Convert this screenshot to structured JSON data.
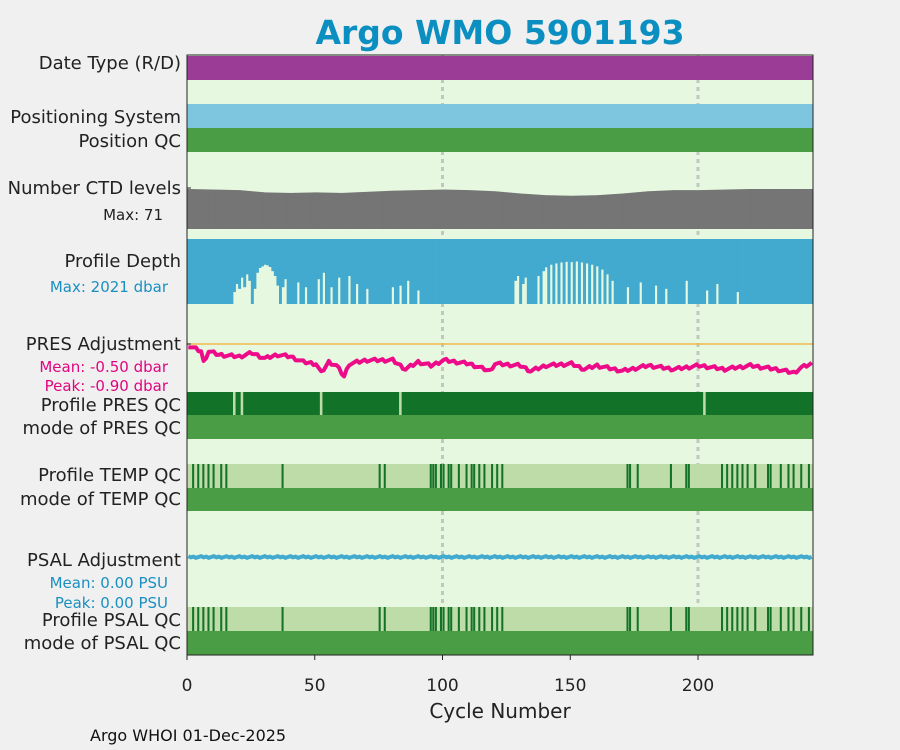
{
  "chart_data": {
    "type": "bar",
    "title": "Argo WMO 5901193",
    "xlabel": "Cycle Number",
    "xlim": [
      0,
      245
    ],
    "xticks": [
      0,
      50,
      100,
      150,
      200
    ],
    "grid_x": [
      100,
      200
    ],
    "footer": "Argo WHOI 01-Dec-2025",
    "n_cycles": 245,
    "colors": {
      "title": "#0b8fc1",
      "background": "#e6f9e0",
      "date_type": "#9b3c97",
      "positioning_system": "#7ec6df",
      "good_qc": "#4a9c45",
      "ctd_levels": "#757575",
      "profile_depth": "#42a9cf",
      "pres_adjust": "#ee0b8a",
      "pres_reference": "#f2b84b",
      "profile_qc_a": "#127228",
      "profile_qc_light": "#bedca8",
      "psal_adjust": "#42a9cf"
    },
    "rows": {
      "date_type": {
        "label": "Date Type (R/D)",
        "value": "D"
      },
      "positioning_system": {
        "label": "Positioning System"
      },
      "position_qc": {
        "label": "Position QC",
        "value": "1"
      },
      "ctd_levels": {
        "label": "Number CTD levels",
        "stat": "Max: 71",
        "max": 71
      },
      "profile_depth": {
        "label": "Profile Depth",
        "stat": "Max: 2021 dbar",
        "max": 2021
      },
      "pres_adjustment": {
        "label": "PRES Adjustment",
        "mean": "Mean: -0.50 dbar",
        "peak": "Peak: -0.90 dbar",
        "mean_value": -0.5,
        "peak_value": -0.9
      },
      "profile_pres_qc": {
        "label": "Profile PRES QC",
        "flagged_cycles": [
          18,
          21,
          52,
          83,
          202
        ]
      },
      "mode_pres_qc": {
        "label": "mode of PRES QC",
        "value": "1"
      },
      "profile_temp_qc": {
        "label": "Profile TEMP QC",
        "flagged_cycles": [
          2,
          4,
          6,
          8,
          10,
          13,
          15,
          37,
          75,
          77,
          95,
          96,
          97,
          99,
          100,
          102,
          103,
          106,
          109,
          111,
          112,
          114,
          116,
          119,
          121,
          123,
          172,
          173,
          176,
          189,
          195,
          196,
          209,
          211,
          213,
          215,
          217,
          219,
          222,
          227,
          228,
          232,
          235,
          237,
          240,
          243
        ]
      },
      "mode_temp_qc": {
        "label": "mode of TEMP QC",
        "value": "1"
      },
      "psal_adjustment": {
        "label": "PSAL Adjustment",
        "mean": "Mean: 0.00 PSU",
        "peak": "Peak: 0.00 PSU",
        "mean_value": 0.0,
        "peak_value": 0.0
      },
      "profile_psal_qc": {
        "label": "Profile PSAL QC",
        "flagged_cycles": [
          2,
          4,
          6,
          8,
          10,
          13,
          15,
          37,
          75,
          77,
          95,
          96,
          97,
          99,
          100,
          102,
          103,
          106,
          109,
          111,
          112,
          114,
          116,
          119,
          121,
          123,
          172,
          173,
          176,
          189,
          195,
          196,
          209,
          211,
          213,
          215,
          217,
          219,
          222,
          227,
          228,
          232,
          235,
          237,
          240,
          243
        ]
      },
      "mode_psal_qc": {
        "label": "mode of PSAL QC",
        "value": "1"
      }
    },
    "series": {
      "ctd_levels": [
        {
          "x": 0,
          "y": 71
        },
        {
          "x": 10,
          "y": 70
        },
        {
          "x": 20,
          "y": 69
        },
        {
          "x": 30,
          "y": 65
        },
        {
          "x": 40,
          "y": 64
        },
        {
          "x": 50,
          "y": 65
        },
        {
          "x": 60,
          "y": 64
        },
        {
          "x": 70,
          "y": 66
        },
        {
          "x": 80,
          "y": 68
        },
        {
          "x": 90,
          "y": 69
        },
        {
          "x": 100,
          "y": 70
        },
        {
          "x": 110,
          "y": 69
        },
        {
          "x": 120,
          "y": 67
        },
        {
          "x": 130,
          "y": 63
        },
        {
          "x": 140,
          "y": 60
        },
        {
          "x": 150,
          "y": 59
        },
        {
          "x": 160,
          "y": 60
        },
        {
          "x": 170,
          "y": 63
        },
        {
          "x": 180,
          "y": 67
        },
        {
          "x": 190,
          "y": 69
        },
        {
          "x": 200,
          "y": 69
        },
        {
          "x": 210,
          "y": 70
        },
        {
          "x": 220,
          "y": 71
        },
        {
          "x": 230,
          "y": 71
        },
        {
          "x": 244,
          "y": 71
        }
      ],
      "profile_depth_dips": [
        {
          "x": 18,
          "y": 1650
        },
        {
          "x": 19,
          "y": 1400
        },
        {
          "x": 20,
          "y": 1550
        },
        {
          "x": 21,
          "y": 1200
        },
        {
          "x": 22,
          "y": 1500
        },
        {
          "x": 23,
          "y": 1100
        },
        {
          "x": 24,
          "y": 1300
        },
        {
          "x": 26,
          "y": 1550
        },
        {
          "x": 27,
          "y": 1050
        },
        {
          "x": 28,
          "y": 900
        },
        {
          "x": 29,
          "y": 850
        },
        {
          "x": 30,
          "y": 800
        },
        {
          "x": 31,
          "y": 820
        },
        {
          "x": 32,
          "y": 870
        },
        {
          "x": 33,
          "y": 1000
        },
        {
          "x": 34,
          "y": 1150
        },
        {
          "x": 35,
          "y": 1450
        },
        {
          "x": 37,
          "y": 1500
        },
        {
          "x": 38,
          "y": 1250
        },
        {
          "x": 43,
          "y": 1350
        },
        {
          "x": 46,
          "y": 1500
        },
        {
          "x": 51,
          "y": 1250
        },
        {
          "x": 53,
          "y": 1050
        },
        {
          "x": 56,
          "y": 1500
        },
        {
          "x": 59,
          "y": 1200
        },
        {
          "x": 63,
          "y": 1150
        },
        {
          "x": 66,
          "y": 1400
        },
        {
          "x": 70,
          "y": 1550
        },
        {
          "x": 80,
          "y": 1500
        },
        {
          "x": 83,
          "y": 1450
        },
        {
          "x": 86,
          "y": 1300
        },
        {
          "x": 90,
          "y": 1600
        },
        {
          "x": 128,
          "y": 1300
        },
        {
          "x": 129,
          "y": 1150
        },
        {
          "x": 131,
          "y": 1400
        },
        {
          "x": 132,
          "y": 1200
        },
        {
          "x": 137,
          "y": 1150
        },
        {
          "x": 139,
          "y": 1000
        },
        {
          "x": 140,
          "y": 880
        },
        {
          "x": 142,
          "y": 800
        },
        {
          "x": 144,
          "y": 760
        },
        {
          "x": 146,
          "y": 730
        },
        {
          "x": 148,
          "y": 710
        },
        {
          "x": 150,
          "y": 720
        },
        {
          "x": 152,
          "y": 700
        },
        {
          "x": 154,
          "y": 730
        },
        {
          "x": 156,
          "y": 760
        },
        {
          "x": 158,
          "y": 800
        },
        {
          "x": 160,
          "y": 850
        },
        {
          "x": 162,
          "y": 950
        },
        {
          "x": 164,
          "y": 1100
        },
        {
          "x": 166,
          "y": 1300
        },
        {
          "x": 172,
          "y": 1500
        },
        {
          "x": 177,
          "y": 1350
        },
        {
          "x": 183,
          "y": 1450
        },
        {
          "x": 187,
          "y": 1550
        },
        {
          "x": 195,
          "y": 1300
        },
        {
          "x": 203,
          "y": 1600
        },
        {
          "x": 207,
          "y": 1400
        },
        {
          "x": 215,
          "y": 1650
        }
      ],
      "pres_adjustment": [
        {
          "x": 0,
          "y": -0.05
        },
        {
          "x": 5,
          "y": -0.2
        },
        {
          "x": 6,
          "y": -0.5
        },
        {
          "x": 8,
          "y": -0.2
        },
        {
          "x": 12,
          "y": -0.3
        },
        {
          "x": 20,
          "y": -0.35
        },
        {
          "x": 25,
          "y": -0.25
        },
        {
          "x": 30,
          "y": -0.4
        },
        {
          "x": 35,
          "y": -0.3
        },
        {
          "x": 40,
          "y": -0.35
        },
        {
          "x": 45,
          "y": -0.5
        },
        {
          "x": 50,
          "y": -0.55
        },
        {
          "x": 52,
          "y": -0.8
        },
        {
          "x": 55,
          "y": -0.5
        },
        {
          "x": 58,
          "y": -0.6
        },
        {
          "x": 61,
          "y": -0.9
        },
        {
          "x": 63,
          "y": -0.55
        },
        {
          "x": 70,
          "y": -0.45
        },
        {
          "x": 80,
          "y": -0.45
        },
        {
          "x": 85,
          "y": -0.7
        },
        {
          "x": 90,
          "y": -0.5
        },
        {
          "x": 95,
          "y": -0.6
        },
        {
          "x": 100,
          "y": -0.45
        },
        {
          "x": 110,
          "y": -0.55
        },
        {
          "x": 118,
          "y": -0.75
        },
        {
          "x": 120,
          "y": -0.55
        },
        {
          "x": 130,
          "y": -0.6
        },
        {
          "x": 134,
          "y": -0.75
        },
        {
          "x": 140,
          "y": -0.6
        },
        {
          "x": 150,
          "y": -0.55
        },
        {
          "x": 155,
          "y": -0.7
        },
        {
          "x": 160,
          "y": -0.6
        },
        {
          "x": 170,
          "y": -0.75
        },
        {
          "x": 180,
          "y": -0.6
        },
        {
          "x": 190,
          "y": -0.7
        },
        {
          "x": 200,
          "y": -0.6
        },
        {
          "x": 210,
          "y": -0.7
        },
        {
          "x": 220,
          "y": -0.6
        },
        {
          "x": 230,
          "y": -0.7
        },
        {
          "x": 237,
          "y": -0.8
        },
        {
          "x": 240,
          "y": -0.65
        },
        {
          "x": 244,
          "y": -0.55
        }
      ],
      "psal_adjustment": [
        {
          "x": 0,
          "y": 0.0
        },
        {
          "x": 244,
          "y": 0.0
        }
      ]
    }
  }
}
